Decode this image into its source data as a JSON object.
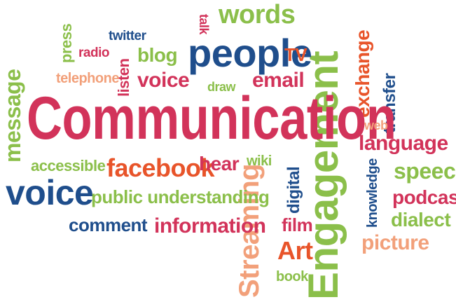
{
  "palette": {
    "crimson": "#d2335a",
    "navy": "#1f4e8c",
    "green": "#8bbf4a",
    "orange": "#e8542a",
    "peach": "#f2a07a"
  },
  "words": {
    "communication": "Communication",
    "engagement": "Engagement",
    "streaming": "Streaming",
    "people": "people",
    "words": "words",
    "message": "message",
    "press": "press",
    "twitter": "twitter",
    "talk": "talk",
    "radio": "radio",
    "blog": "blog",
    "tv": "TV",
    "listen": "listen",
    "telephone": "telephone",
    "voice_top": "voice",
    "draw": "draw",
    "email": "email",
    "exchange": "exchange",
    "transfer": "transfer",
    "web": "web",
    "language": "language",
    "accessible": "accessible",
    "facebook": "facebook",
    "hear": "hear",
    "wiki": "wiki",
    "speech": "speech",
    "knowledge": "knowledge",
    "voice_big": "voice",
    "public_understanding": "public understanding",
    "digital": "digital",
    "podcast": "podcast",
    "comment": "comment",
    "information": "information",
    "film": "film",
    "dialect": "dialect",
    "art": "Art",
    "picture": "picture",
    "book": "book"
  }
}
